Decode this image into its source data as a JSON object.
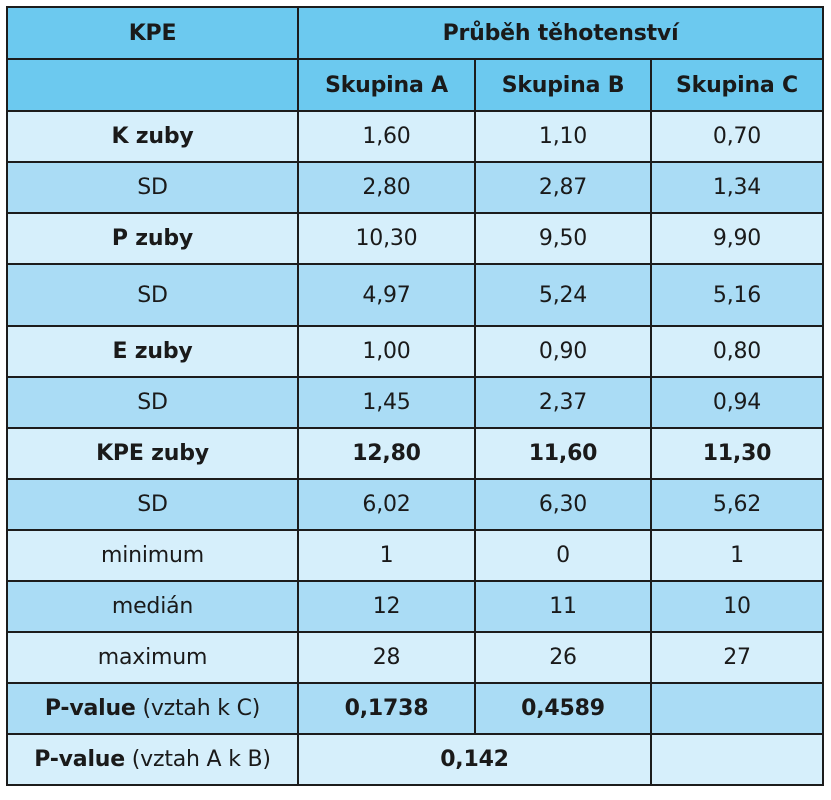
{
  "header": {
    "kpe": "KPE",
    "group_title": "Průběh těhotenství",
    "groups": [
      "Skupina A",
      "Skupina B",
      "Skupina C"
    ]
  },
  "rows": [
    {
      "label": "K zuby",
      "a": "1,60",
      "b": "1,10",
      "c": "0,70"
    },
    {
      "label": "SD",
      "a": "2,80",
      "b": "2,87",
      "c": "1,34"
    },
    {
      "label": "P zuby",
      "a": "10,30",
      "b": "9,50",
      "c": "9,90"
    },
    {
      "label": "SD",
      "a": "4,97",
      "b": "5,24",
      "c": "5,16"
    },
    {
      "label": "E zuby",
      "a": "1,00",
      "b": "0,90",
      "c": "0,80"
    },
    {
      "label": "SD",
      "a": "1,45",
      "b": "2,37",
      "c": "0,94"
    },
    {
      "label": "KPE zuby",
      "a": "12,80",
      "b": "11,60",
      "c": "11,30"
    },
    {
      "label": "SD",
      "a": "6,02",
      "b": "6,30",
      "c": "5,62"
    },
    {
      "label": "minimum",
      "a": "1",
      "b": "0",
      "c": "1"
    },
    {
      "label": "medián",
      "a": "12",
      "b": "11",
      "c": "10"
    },
    {
      "label": "maximum",
      "a": "28",
      "b": "26",
      "c": "27"
    }
  ],
  "pvalue_c": {
    "label_bold": "P-value",
    "label_rest": "(vztah k C)",
    "a": "0,1738",
    "b": "0,4589"
  },
  "pvalue_ab": {
    "label_bold": "P-value",
    "label_rest": "(vztah A k B)",
    "value": "0,142"
  },
  "colors": {
    "header": "#6cc9ef",
    "row_light": "#d6effb",
    "row_dark": "#aadcf5",
    "border": "#1c1c1c"
  }
}
